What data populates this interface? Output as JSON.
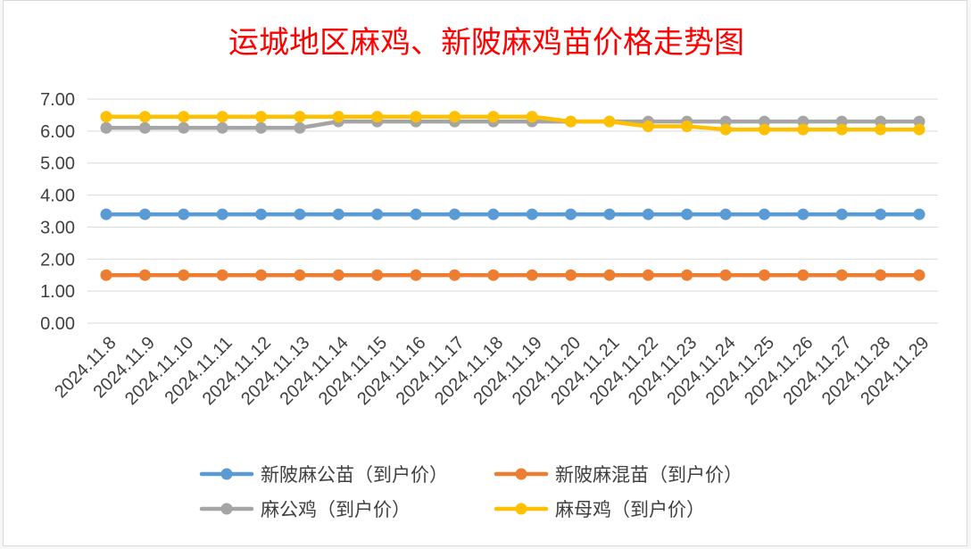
{
  "chart_data": {
    "type": "line",
    "title": "运城地区麻鸡、新陂麻鸡苗价格走势图",
    "categories": [
      "2024.11.8",
      "2024.11.9",
      "2024.11.10",
      "2024.11.11",
      "2024.11.12",
      "2024.11.13",
      "2024.11.14",
      "2024.11.15",
      "2024.11.16",
      "2024.11.17",
      "2024.11.18",
      "2024.11.19",
      "2024.11.20",
      "2024.11.21",
      "2024.11.22",
      "2024.11.23",
      "2024.11.24",
      "2024.11.25",
      "2024.11.26",
      "2024.11.27",
      "2024.11.28",
      "2024.11.29"
    ],
    "ylim": [
      0,
      7
    ],
    "yticks": [
      "0.00",
      "1.00",
      "2.00",
      "3.00",
      "4.00",
      "5.00",
      "6.00",
      "7.00"
    ],
    "grid": true,
    "legend_position": "bottom",
    "series": [
      {
        "name": "新陂麻公苗（到户价）",
        "color": "#5b9bd5",
        "values": [
          3.4,
          3.4,
          3.4,
          3.4,
          3.4,
          3.4,
          3.4,
          3.4,
          3.4,
          3.4,
          3.4,
          3.4,
          3.4,
          3.4,
          3.4,
          3.4,
          3.4,
          3.4,
          3.4,
          3.4,
          3.4,
          3.4
        ]
      },
      {
        "name": "新陂麻混苗（到户价）",
        "color": "#ed7d31",
        "values": [
          1.5,
          1.5,
          1.5,
          1.5,
          1.5,
          1.5,
          1.5,
          1.5,
          1.5,
          1.5,
          1.5,
          1.5,
          1.5,
          1.5,
          1.5,
          1.5,
          1.5,
          1.5,
          1.5,
          1.5,
          1.5,
          1.5
        ]
      },
      {
        "name": "麻公鸡（到户价）",
        "color": "#a5a5a5",
        "values": [
          6.1,
          6.1,
          6.1,
          6.1,
          6.1,
          6.1,
          6.3,
          6.3,
          6.3,
          6.3,
          6.3,
          6.3,
          6.3,
          6.3,
          6.3,
          6.3,
          6.3,
          6.3,
          6.3,
          6.3,
          6.3,
          6.3
        ]
      },
      {
        "name": "麻母鸡（到户价）",
        "color": "#ffc000",
        "values": [
          6.45,
          6.45,
          6.45,
          6.45,
          6.45,
          6.45,
          6.45,
          6.45,
          6.45,
          6.45,
          6.45,
          6.45,
          6.3,
          6.3,
          6.15,
          6.15,
          6.05,
          6.05,
          6.05,
          6.05,
          6.05,
          6.05
        ]
      }
    ]
  }
}
